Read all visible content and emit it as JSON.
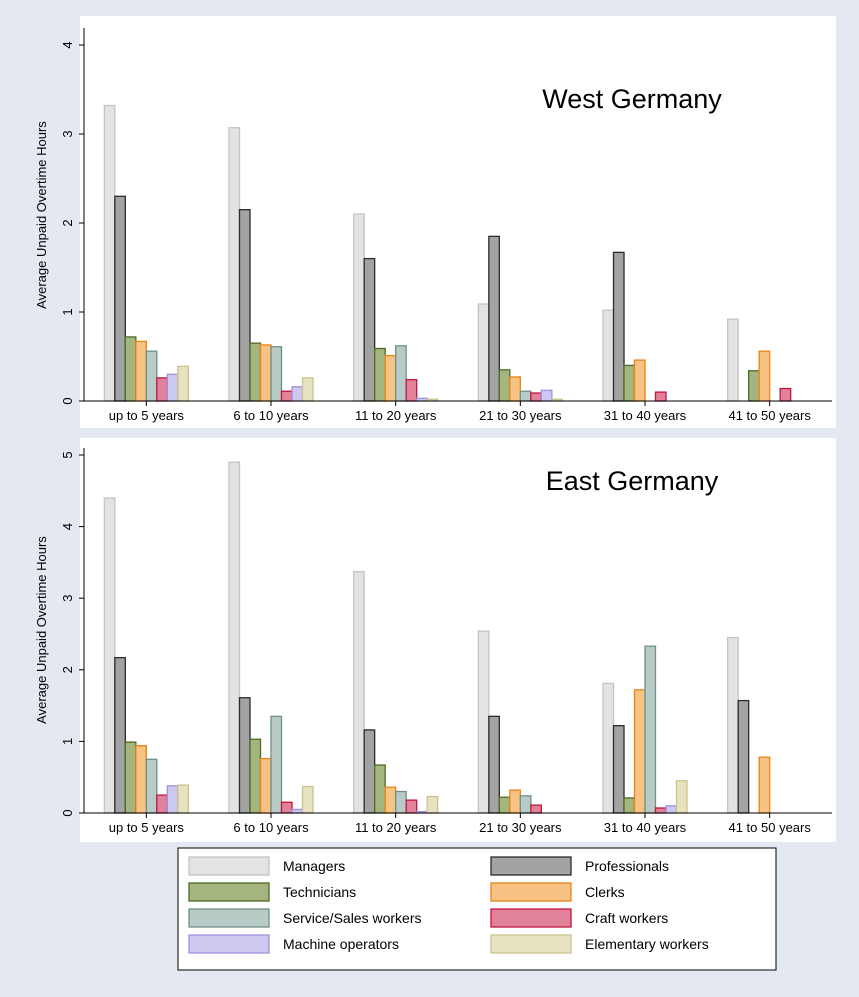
{
  "chart_data": [
    {
      "type": "bar",
      "title": "West Germany",
      "ylabel": "Average Unpaid Overtime Hours",
      "xlabel": "",
      "ylim": [
        0,
        4
      ],
      "yticks": [
        "0",
        "1",
        "2",
        "3",
        "4"
      ],
      "grid": false,
      "categories": [
        "up to 5 years",
        "6 to 10 years",
        "11 to 20 years",
        "21 to 30 years",
        "31 to 40 years",
        "41 to 50 years"
      ],
      "series": [
        {
          "name": "Managers",
          "values": [
            3.32,
            3.07,
            2.1,
            1.09,
            1.02,
            0.92
          ]
        },
        {
          "name": "Professionals",
          "values": [
            2.3,
            2.15,
            1.6,
            1.85,
            1.67,
            null
          ]
        },
        {
          "name": "Technicians",
          "values": [
            0.72,
            0.65,
            0.59,
            0.35,
            0.4,
            0.34
          ]
        },
        {
          "name": "Clerks",
          "values": [
            0.67,
            0.63,
            0.51,
            0.27,
            0.46,
            0.56
          ]
        },
        {
          "name": "Service/Sales workers",
          "values": [
            0.56,
            0.61,
            0.62,
            0.11,
            null,
            null
          ]
        },
        {
          "name": "Craft workers",
          "values": [
            0.26,
            0.11,
            0.24,
            0.09,
            0.1,
            0.14
          ]
        },
        {
          "name": "Machine operators",
          "values": [
            0.3,
            0.16,
            0.03,
            0.12,
            null,
            null
          ]
        },
        {
          "name": "Elementary workers",
          "values": [
            0.39,
            0.26,
            0.02,
            0.02,
            null,
            null
          ]
        }
      ]
    },
    {
      "type": "bar",
      "title": "East Germany",
      "ylabel": "Average Unpaid Overtime Hours",
      "xlabel": "",
      "ylim": [
        0,
        5
      ],
      "yticks": [
        "0",
        "1",
        "2",
        "3",
        "4",
        "5"
      ],
      "grid": false,
      "categories": [
        "up to 5 years",
        "6 to 10 years",
        "11 to 20 years",
        "21 to 30 years",
        "31 to 40 years",
        "41 to 50 years"
      ],
      "series": [
        {
          "name": "Managers",
          "values": [
            4.4,
            4.9,
            3.37,
            2.54,
            1.81,
            2.45
          ]
        },
        {
          "name": "Professionals",
          "values": [
            2.17,
            1.61,
            1.16,
            1.35,
            1.22,
            1.57
          ]
        },
        {
          "name": "Technicians",
          "values": [
            0.99,
            1.03,
            0.67,
            0.22,
            0.21,
            null
          ]
        },
        {
          "name": "Clerks",
          "values": [
            0.94,
            0.76,
            0.36,
            0.32,
            1.72,
            0.78
          ]
        },
        {
          "name": "Service/Sales workers",
          "values": [
            0.75,
            1.35,
            0.3,
            0.24,
            2.33,
            null
          ]
        },
        {
          "name": "Craft workers",
          "values": [
            0.25,
            0.15,
            0.18,
            0.11,
            0.07,
            null
          ]
        },
        {
          "name": "Machine operators",
          "values": [
            0.38,
            0.05,
            0.02,
            null,
            0.1,
            null
          ]
        },
        {
          "name": "Elementary workers",
          "values": [
            0.39,
            0.37,
            0.23,
            null,
            0.45,
            null
          ]
        }
      ]
    }
  ],
  "legend": {
    "placement": "bottom",
    "items": [
      "Managers",
      "Professionals",
      "Technicians",
      "Clerks",
      "Service/Sales workers",
      "Craft workers",
      "Machine operators",
      "Elementary workers"
    ]
  },
  "colors": {
    "background": "#e4e9f1",
    "plot_background": "#ffffff",
    "Managers": {
      "fill": "#e3e3e3",
      "stroke": "#c4c4c4"
    },
    "Professionals": {
      "fill": "#a3a3a3",
      "stroke": "#2b2b2b"
    },
    "Technicians": {
      "fill": "#a4b57f",
      "stroke": "#4f6a26"
    },
    "Clerks": {
      "fill": "#f6c384",
      "stroke": "#e88316"
    },
    "Service/Sales workers": {
      "fill": "#b8cbc6",
      "stroke": "#6e9088"
    },
    "Craft workers": {
      "fill": "#e2819a",
      "stroke": "#c1163f"
    },
    "Machine operators": {
      "fill": "#cdc8ef",
      "stroke": "#9c93dc"
    },
    "Elementary workers": {
      "fill": "#e7e3c0",
      "stroke": "#cbc38d"
    }
  }
}
